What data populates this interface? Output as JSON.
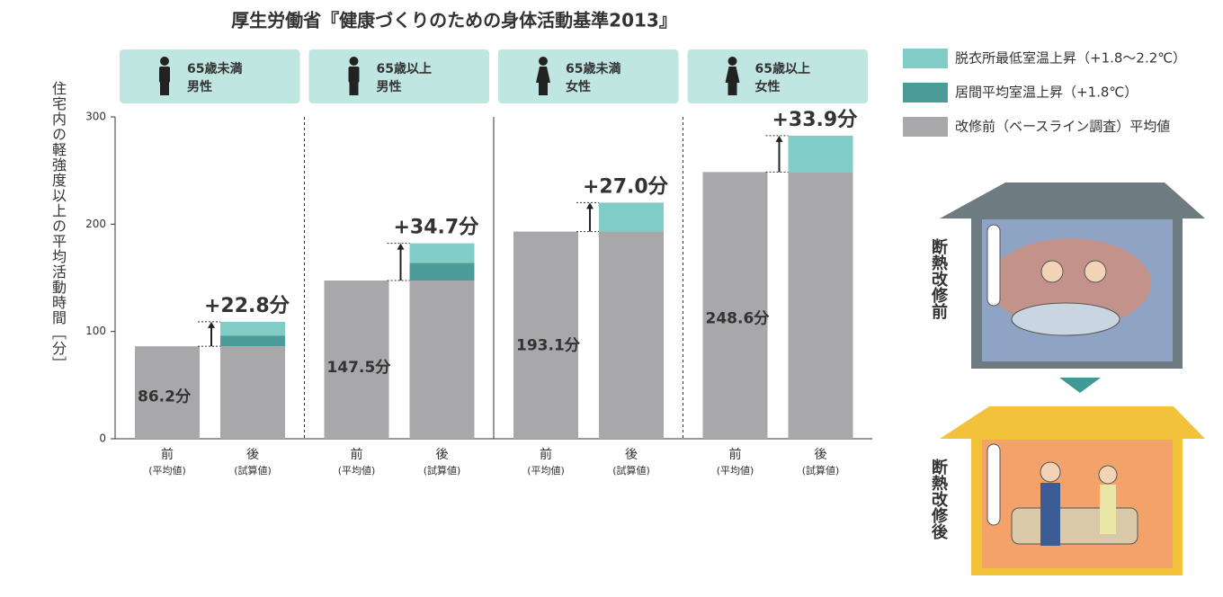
{
  "chart_data": {
    "type": "stacked-bar",
    "title": "厚生労働省『健康づくりのための身体活動基準2013』",
    "ylabel": "住宅内の軽強度以上の平均活動時間［分］",
    "ylim": [
      0,
      300
    ],
    "yticks": [
      0,
      100,
      200,
      300
    ],
    "groups": [
      {
        "lines": [
          "65歳未満",
          "男性"
        ],
        "icon": "male"
      },
      {
        "lines": [
          "65歳以上",
          "男性"
        ],
        "icon": "male"
      },
      {
        "lines": [
          "65歳未満",
          "女性"
        ],
        "icon": "female"
      },
      {
        "lines": [
          "65歳以上",
          "女性"
        ],
        "icon": "female"
      }
    ],
    "bar_labels": [
      {
        "label": "前",
        "sub": "(平均値)"
      },
      {
        "label": "後",
        "sub": "(試算値)"
      }
    ],
    "series": [
      {
        "name": "改修前（ベースライン調査）平均値",
        "color": "#a8a7a9",
        "values": [
          86.2,
          147.5,
          193.1,
          248.6
        ],
        "value_labels": [
          "86.2分",
          "147.5分",
          "193.1分",
          "248.6分"
        ]
      },
      {
        "name": "居間平均室温上昇（+1.8℃）",
        "color": "#4b9b98",
        "values": [
          10,
          16.5,
          null,
          null
        ]
      },
      {
        "name": "脱衣所最低室温上昇（+1.8〜2.2℃）",
        "color": "#7fcdc6",
        "values": [
          12.8,
          18.2,
          27.0,
          33.9
        ]
      }
    ],
    "annotations": [
      {
        "value": 22.8,
        "label": "+22.8分"
      },
      {
        "value": 34.7,
        "label": "+34.7分"
      },
      {
        "value": 27.0,
        "label": "+27.0分"
      },
      {
        "value": 33.9,
        "label": "+33.9分"
      }
    ]
  },
  "illustration": {
    "before": "断熱改修前",
    "after": "断熱改修後"
  }
}
